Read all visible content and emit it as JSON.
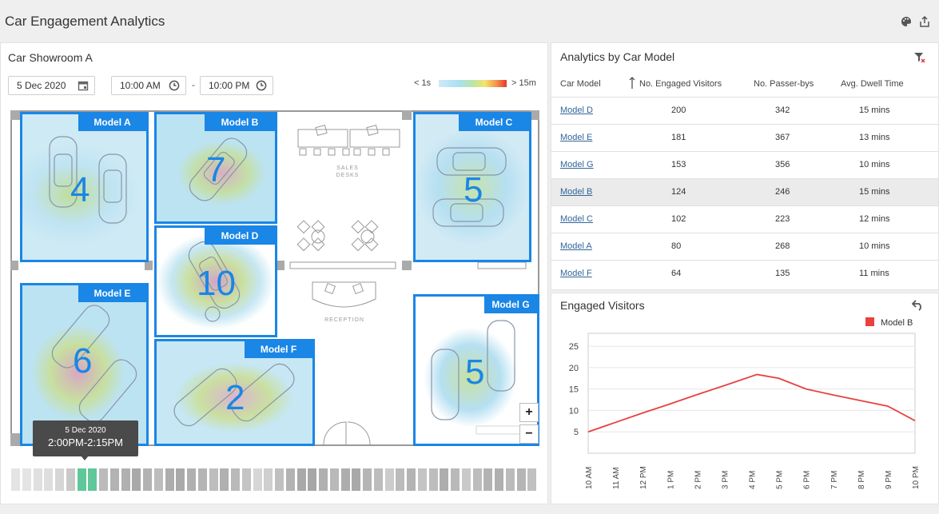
{
  "app": {
    "title": "Car Engagement Analytics"
  },
  "showroom": {
    "title": "Car Showroom A",
    "date": "5 Dec 2020",
    "time_from": "10:00 AM",
    "time_to": "10:00 PM",
    "separator": "-",
    "legend_low": "< 1s",
    "legend_high": "> 15m",
    "zoom_in": "+",
    "zoom_out": "−",
    "tooltip": {
      "date": "5 Dec 2020",
      "range": "2:00PM-2:15PM"
    },
    "zones": [
      {
        "label": "Model A",
        "count": "4"
      },
      {
        "label": "Model B",
        "count": "7"
      },
      {
        "label": "Model C",
        "count": "5"
      },
      {
        "label": "Model D",
        "count": "10"
      },
      {
        "label": "Model E",
        "count": "6"
      },
      {
        "label": "Model F",
        "count": "2"
      },
      {
        "label": "Model G",
        "count": "5"
      }
    ],
    "floor_labels": {
      "sales_1": "SALES",
      "sales_2": "DESKS",
      "reception": "RECEPTION"
    },
    "timeline_selected": [
      6,
      7
    ]
  },
  "table": {
    "title": "Analytics by Car Model",
    "headers": [
      "Car Model",
      "No. Engaged Visitors",
      "No. Passer-bys",
      "Avg. Dwell Time"
    ],
    "selected_row": 3,
    "rows": [
      [
        "Model D",
        "200",
        "342",
        "15 mins"
      ],
      [
        "Model E",
        "181",
        "367",
        "13 mins"
      ],
      [
        "Model G",
        "153",
        "356",
        "10 mins"
      ],
      [
        "Model B",
        "124",
        "246",
        "15 mins"
      ],
      [
        "Model C",
        "102",
        "223",
        "12 mins"
      ],
      [
        "Model A",
        "80",
        "268",
        "10 mins"
      ],
      [
        "Model F",
        "64",
        "135",
        "11 mins"
      ]
    ]
  },
  "engaged": {
    "title": "Engaged Visitors"
  },
  "chart_data": {
    "type": "line",
    "title": "",
    "xlabel": "",
    "ylabel": "",
    "categories": [
      "10 AM",
      "11 AM",
      "12 PM",
      "1 PM",
      "2 PM",
      "3 PM",
      "4 PM",
      "5 PM",
      "6 PM",
      "7 PM",
      "8 PM",
      "9 PM",
      "10 PM"
    ],
    "series": [
      {
        "name": "Model B",
        "color": "#e8413e",
        "x": [
          0,
          1,
          2,
          3,
          4,
          5,
          6.2,
          7,
          8,
          9,
          10,
          11,
          12
        ],
        "values": [
          5,
          7.2,
          9.4,
          11.5,
          13.7,
          15.8,
          18.4,
          17.5,
          15,
          13.6,
          12.3,
          11,
          7.6
        ]
      }
    ],
    "yticks": [
      5,
      10,
      15,
      20,
      25
    ],
    "ylim": [
      0,
      28
    ],
    "legend": "top-right",
    "grid": true
  }
}
